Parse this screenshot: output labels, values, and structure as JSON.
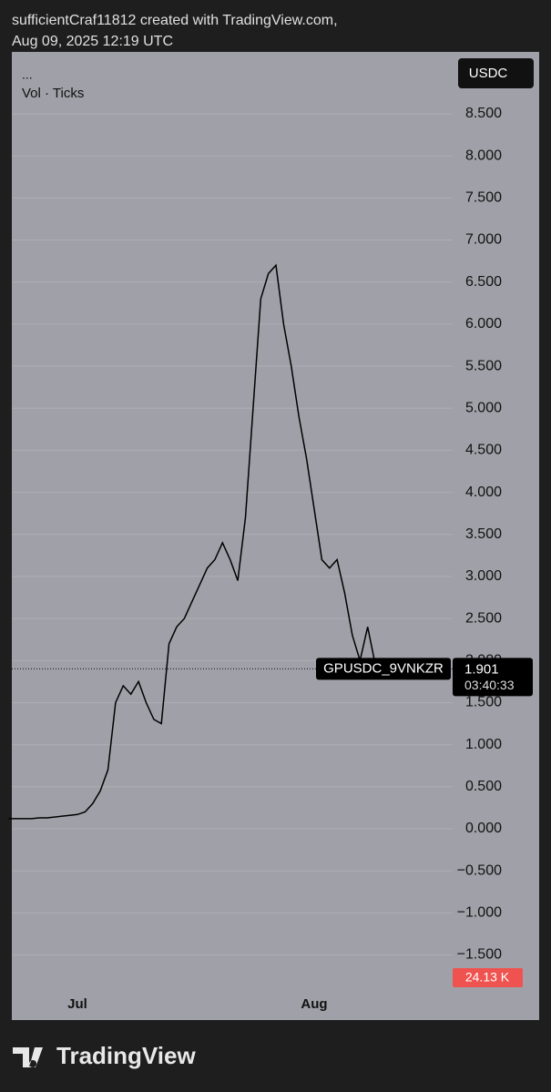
{
  "header": {
    "line1": "sufficientCraf11812 created with TradingView.com,",
    "line2": "Aug 09, 2025 12:19 UTC"
  },
  "footer": {
    "brand": "TradingView"
  },
  "chart_data": {
    "type": "line",
    "menu": "...",
    "indicator": "Vol · Ticks",
    "currency": "USDC",
    "symbol": "GPUSDC_9VNKZR",
    "last_price": 1.901,
    "countdown": "03:40:33",
    "volume_label": "24.13 K",
    "categories": [
      null,
      null,
      null,
      null,
      null,
      null,
      null,
      null,
      null,
      "Jul",
      null,
      null,
      null,
      null,
      null,
      null,
      null,
      null,
      null,
      null,
      null,
      null,
      null,
      null,
      null,
      null,
      null,
      null,
      null,
      null,
      null,
      null,
      null,
      null,
      null,
      null,
      null,
      null,
      null,
      null,
      "Aug",
      null,
      null,
      null,
      null,
      null,
      null,
      null,
      null,
      null,
      null,
      null,
      null,
      null,
      null,
      null,
      null,
      null,
      null,
      null,
      null,
      null,
      null,
      null,
      null,
      null,
      null,
      null,
      null,
      null
    ],
    "series": [
      {
        "name": "GPUSDC_9VNKZR",
        "color": "#000000",
        "values": [
          0.12,
          0.12,
          0.12,
          0.12,
          0.13,
          0.13,
          0.14,
          0.15,
          0.16,
          0.17,
          0.2,
          0.3,
          0.45,
          0.7,
          1.5,
          1.7,
          1.6,
          1.75,
          1.5,
          1.3,
          1.25,
          2.2,
          2.4,
          2.5,
          2.7,
          2.9,
          3.1,
          3.2,
          3.4,
          3.2,
          2.95,
          3.7,
          5.0,
          6.3,
          6.6,
          6.7,
          6.0,
          5.5,
          4.9,
          4.4,
          3.8,
          3.2,
          3.1,
          3.2,
          2.8,
          2.3,
          2.0,
          2.4,
          1.95,
          1.9,
          null,
          null,
          null,
          null,
          null,
          null,
          null,
          null,
          null,
          null,
          null,
          null,
          null,
          null,
          null,
          null,
          null,
          null,
          null,
          null
        ]
      }
    ],
    "ylim": [
      -1.895,
      9.236
    ],
    "yticks": [
      {
        "value": -1.5,
        "label": "−1.500"
      },
      {
        "value": -1,
        "label": "−1.000"
      },
      {
        "value": -0.5,
        "label": "−0.500"
      },
      {
        "value": 0,
        "label": "0.000"
      },
      {
        "value": 0.5,
        "label": "0.500"
      },
      {
        "value": 1,
        "label": "1.000"
      },
      {
        "value": 1.5,
        "label": "1.500"
      },
      {
        "value": 2,
        "label": "2.000"
      },
      {
        "value": 2.5,
        "label": "2.500"
      },
      {
        "value": 3,
        "label": "3.000"
      },
      {
        "value": 3.5,
        "label": "3.500"
      },
      {
        "value": 4,
        "label": "4.000"
      },
      {
        "value": 4.5,
        "label": "4.500"
      },
      {
        "value": 5,
        "label": "5.000"
      },
      {
        "value": 5.5,
        "label": "5.500"
      },
      {
        "value": 6,
        "label": "6.000"
      },
      {
        "value": 6.5,
        "label": "6.500"
      },
      {
        "value": 7,
        "label": "7.000"
      },
      {
        "value": 7.5,
        "label": "7.500"
      },
      {
        "value": 8,
        "label": "8.000"
      },
      {
        "value": 8.5,
        "label": "8.500"
      }
    ],
    "grid": true
  }
}
